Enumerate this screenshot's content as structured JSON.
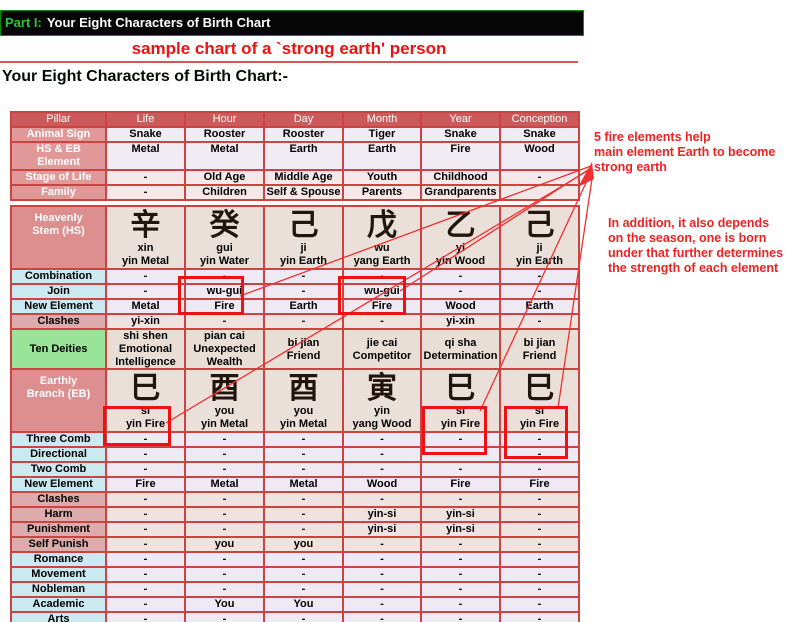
{
  "page": {
    "title_bar": {
      "part_label": "Part I:",
      "title": "Your Eight Characters of Birth Chart"
    },
    "subtitle": "sample chart of a `strong earth' person",
    "section_heading": "Your Eight Characters of Birth Chart:-"
  },
  "colors": {
    "header_red": "#cd5a5a",
    "label_pink": "#dd8e8e",
    "label_blue": "#cbe9f1",
    "label_green": "#9ae49a",
    "cell_lavender": "#efe9f3",
    "cell_beige": "#e9ded5",
    "table_border": "#cb4343",
    "highlight_red": "#ee1111",
    "annotation_red": "#ee2222",
    "title_green": "#2ec52e"
  },
  "pillar_table": {
    "header": [
      "Pillar",
      "Life",
      "Hour",
      "Day",
      "Month",
      "Year",
      "Conception"
    ],
    "rows": [
      {
        "label": "Animal Sign",
        "style": "plain",
        "cells": [
          "Snake",
          "Rooster",
          "Rooster",
          "Tiger",
          "Snake",
          "Snake"
        ]
      },
      {
        "label": "HS & EB\nElement",
        "style": "plain",
        "tall": true,
        "cells": [
          "Metal",
          "Metal",
          "Earth",
          "Earth",
          "Fire",
          "Wood"
        ]
      },
      {
        "label": "Stage of Life",
        "style": "pinkcells",
        "cells": [
          "-",
          "Old Age",
          "Middle Age",
          "Youth",
          "Childhood",
          "-"
        ]
      },
      {
        "label": "Family",
        "style": "pinkcells",
        "cells": [
          "-",
          "Children",
          "Self & Spouse",
          "Parents",
          "Grandparents",
          ""
        ]
      }
    ]
  },
  "hs_table": {
    "corner_label": "Heavenly\nStem (HS)",
    "stems": [
      {
        "char": "辛",
        "name": "xin",
        "element": "yin Metal"
      },
      {
        "char": "癸",
        "name": "gui",
        "element": "yin Water"
      },
      {
        "char": "己",
        "name": "ji",
        "element": "yin Earth"
      },
      {
        "char": "戊",
        "name": "wu",
        "element": "yang Earth"
      },
      {
        "char": "乙",
        "name": "yi",
        "element": "yin Wood"
      },
      {
        "char": "己",
        "name": "ji",
        "element": "yin Earth"
      }
    ],
    "rows": [
      {
        "label": "Combination",
        "label_style": "blue",
        "cell_style": "lav",
        "cells": [
          "-",
          "-",
          "-",
          "-",
          "-",
          "-"
        ]
      },
      {
        "label": "Join",
        "label_style": "blue",
        "cell_style": "lav",
        "cells": [
          "-",
          "wu-gui",
          "-",
          "wu-gui",
          "-",
          "-"
        ]
      },
      {
        "label": "New Element",
        "label_style": "blue",
        "cell_style": "lav",
        "cells": [
          "Metal",
          "Fire",
          "Earth",
          "Fire",
          "Wood",
          "Earth"
        ]
      },
      {
        "label": "Clashes",
        "label_style": "pink",
        "cell_style": "beigepink",
        "cells": [
          "yi-xin",
          "-",
          "-",
          "-",
          "yi-xin",
          "-"
        ]
      },
      {
        "label": "Ten Deities",
        "label_style": "green",
        "cell_style": "beige",
        "tall": true,
        "cells": [
          "shi shen\nEmotional\nIntelligence",
          "pian cai\nUnexpected\nWealth",
          "bi jian\nFriend",
          "jie cai\nCompetitor",
          "qi sha\nDetermination",
          "bi jian\nFriend"
        ]
      }
    ]
  },
  "eb_table": {
    "corner_label": "Earthly\nBranch (EB)",
    "stems": [
      {
        "char": "巳",
        "name": "si",
        "element": "yin Fire"
      },
      {
        "char": "酉",
        "name": "you",
        "element": "yin Metal"
      },
      {
        "char": "酉",
        "name": "you",
        "element": "yin Metal"
      },
      {
        "char": "寅",
        "name": "yin",
        "element": "yang Wood"
      },
      {
        "char": "巳",
        "name": "si",
        "element": "yin Fire"
      },
      {
        "char": "巳",
        "name": "si",
        "element": "yin Fire"
      }
    ],
    "rows": [
      {
        "label": "Three Comb",
        "label_style": "blue",
        "cell_style": "lav",
        "cells": [
          "-",
          "-",
          "-",
          "-",
          "-",
          "-"
        ]
      },
      {
        "label": "Directional",
        "label_style": "blue",
        "cell_style": "lav",
        "cells": [
          "-",
          "-",
          "-",
          "-",
          "-",
          "-"
        ]
      },
      {
        "label": "Two Comb",
        "label_style": "blue",
        "cell_style": "lav",
        "cells": [
          "-",
          "-",
          "-",
          "-",
          "-",
          "-"
        ]
      },
      {
        "label": "New Element",
        "label_style": "blue",
        "cell_style": "lav",
        "cells": [
          "Fire",
          "Metal",
          "Metal",
          "Wood",
          "Fire",
          "Fire"
        ]
      },
      {
        "label": "Clashes",
        "label_style": "pink",
        "cell_style": "beigepink",
        "cells": [
          "-",
          "-",
          "-",
          "-",
          "-",
          "-"
        ]
      },
      {
        "label": "Harm",
        "label_style": "pink",
        "cell_style": "beigepink",
        "cells": [
          "-",
          "-",
          "-",
          "yin-si",
          "yin-si",
          "-"
        ]
      },
      {
        "label": "Punishment",
        "label_style": "pink",
        "cell_style": "beigepink",
        "cells": [
          "-",
          "-",
          "-",
          "yin-si",
          "yin-si",
          "-"
        ]
      },
      {
        "label": "Self Punish",
        "label_style": "pink",
        "cell_style": "beigepink",
        "cells": [
          "-",
          "you",
          "you",
          "-",
          "-",
          "-"
        ]
      },
      {
        "label": "Romance",
        "label_style": "blue",
        "cell_style": "lav",
        "cells": [
          "-",
          "-",
          "-",
          "-",
          "-",
          "-"
        ]
      },
      {
        "label": "Movement",
        "label_style": "blue",
        "cell_style": "lav",
        "cells": [
          "-",
          "-",
          "-",
          "-",
          "-",
          "-"
        ]
      },
      {
        "label": "Nobleman",
        "label_style": "blue",
        "cell_style": "lav",
        "cells": [
          "-",
          "-",
          "-",
          "-",
          "-",
          "-"
        ]
      },
      {
        "label": "Academic",
        "label_style": "blue",
        "cell_style": "lav",
        "cells": [
          "-",
          "You",
          "You",
          "-",
          "-",
          "-"
        ]
      },
      {
        "label": "Arts",
        "label_style": "blue",
        "cell_style": "lav",
        "cells": [
          "-",
          "-",
          "-",
          "-",
          "-",
          "-"
        ]
      },
      {
        "label": "",
        "label_style": "green",
        "cell_style": "lav",
        "sliver": true,
        "cells": [
          "",
          "",
          "",
          "",
          "",
          ""
        ]
      }
    ]
  },
  "annotations": {
    "note_fire": "5 fire elements help\nmain element Earth to become\nstrong earth",
    "note_season": "In addition, it also depends\non the season, one is born\nunder that further determines\nthe strength of each element"
  }
}
